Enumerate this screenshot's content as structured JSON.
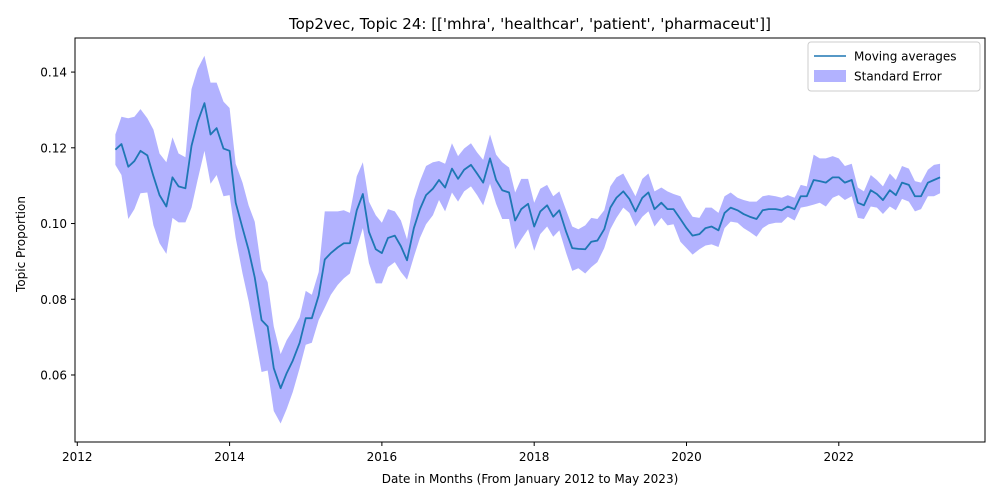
{
  "chart_data": {
    "type": "line",
    "title": "Top2vec, Topic 24: [['mhra', 'healthcar', 'patient', 'pharmaceut']]",
    "xlabel": "Date in Months (From January 2012 to May 2023)",
    "ylabel": "Topic Proportion",
    "xlim": [
      2011.97,
      2023.92
    ],
    "ylim": [
      0.0423,
      0.149
    ],
    "x_ticks": [
      2012,
      2014,
      2016,
      2018,
      2020,
      2022
    ],
    "x_tick_labels": [
      "2012",
      "2014",
      "2016",
      "2018",
      "2020",
      "2022"
    ],
    "y_ticks": [
      0.06,
      0.08,
      0.1,
      0.12,
      0.14
    ],
    "y_tick_labels": [
      "0.06",
      "0.08",
      "0.10",
      "0.12",
      "0.14"
    ],
    "legend": {
      "position": "top-right",
      "entries": [
        {
          "label": "Moving averages",
          "kind": "line"
        },
        {
          "label": "Standard Error",
          "kind": "patch"
        }
      ]
    },
    "colors": {
      "line": "#1f77b4",
      "band": "#0000ff",
      "band_opacity": 0.3
    },
    "x": [
      2012.5,
      2012.58,
      2012.67,
      2012.75,
      2012.83,
      2012.92,
      2013.0,
      2013.08,
      2013.17,
      2013.25,
      2013.33,
      2013.42,
      2013.5,
      2013.58,
      2013.67,
      2013.75,
      2013.83,
      2013.92,
      2014.0,
      2014.08,
      2014.17,
      2014.25,
      2014.33,
      2014.42,
      2014.5,
      2014.58,
      2014.67,
      2014.75,
      2014.83,
      2014.92,
      2015.0,
      2015.08,
      2015.17,
      2015.25,
      2015.33,
      2015.42,
      2015.5,
      2015.58,
      2015.67,
      2015.75,
      2015.83,
      2015.92,
      2016.0,
      2016.08,
      2016.17,
      2016.25,
      2016.33,
      2016.42,
      2016.5,
      2016.58,
      2016.67,
      2016.75,
      2016.83,
      2016.92,
      2017.0,
      2017.08,
      2017.17,
      2017.25,
      2017.33,
      2017.42,
      2017.5,
      2017.58,
      2017.67,
      2017.75,
      2017.83,
      2017.92,
      2018.0,
      2018.08,
      2018.17,
      2018.25,
      2018.33,
      2018.42,
      2018.5,
      2018.58,
      2018.67,
      2018.75,
      2018.83,
      2018.92,
      2019.0,
      2019.08,
      2019.17,
      2019.25,
      2019.33,
      2019.42,
      2019.5,
      2019.58,
      2019.67,
      2019.75,
      2019.83,
      2019.92,
      2020.0,
      2020.08,
      2020.17,
      2020.25,
      2020.33,
      2020.42,
      2020.5,
      2020.58,
      2020.67,
      2020.75,
      2020.83,
      2020.92,
      2021.0,
      2021.08,
      2021.17,
      2021.25,
      2021.33,
      2021.42,
      2021.5,
      2021.58,
      2021.67,
      2021.75,
      2021.83,
      2021.92,
      2022.0,
      2022.08,
      2022.17,
      2022.25,
      2022.33,
      2022.42,
      2022.5,
      2022.58,
      2022.67,
      2022.75,
      2022.83,
      2022.92,
      2023.0,
      2023.08,
      2023.17,
      2023.25,
      2023.33
    ],
    "values": [
      0.1195,
      0.121,
      0.115,
      0.1165,
      0.1192,
      0.118,
      0.1125,
      0.1075,
      0.1045,
      0.1122,
      0.1098,
      0.1093,
      0.1205,
      0.1268,
      0.1318,
      0.1235,
      0.1252,
      0.1198,
      0.1192,
      0.1055,
      0.0988,
      0.093,
      0.0858,
      0.0745,
      0.0728,
      0.0618,
      0.0565,
      0.0605,
      0.0638,
      0.0685,
      0.075,
      0.075,
      0.081,
      0.0905,
      0.0922,
      0.0937,
      0.0948,
      0.0948,
      0.1035,
      0.1078,
      0.0978,
      0.0932,
      0.0922,
      0.0962,
      0.0968,
      0.094,
      0.0903,
      0.0988,
      0.1038,
      0.1075,
      0.1092,
      0.1115,
      0.1095,
      0.1145,
      0.1118,
      0.1142,
      0.1155,
      0.1132,
      0.1108,
      0.1172,
      0.1115,
      0.1088,
      0.1082,
      0.1008,
      0.1038,
      0.1052,
      0.0992,
      0.1032,
      0.1048,
      0.1018,
      0.1035,
      0.0978,
      0.0935,
      0.0933,
      0.0932,
      0.0952,
      0.0955,
      0.0985,
      0.1042,
      0.1068,
      0.1085,
      0.1065,
      0.1032,
      0.1068,
      0.1082,
      0.1038,
      0.1055,
      0.1038,
      0.1038,
      0.1012,
      0.0988,
      0.0968,
      0.0972,
      0.0988,
      0.0992,
      0.0982,
      0.1028,
      0.1042,
      0.1035,
      0.1025,
      0.1018,
      0.1012,
      0.1035,
      0.1038,
      0.1038,
      0.1035,
      0.1045,
      0.1038,
      0.1072,
      0.1072,
      0.1115,
      0.1112,
      0.1108,
      0.1122,
      0.1122,
      0.1108,
      0.1115,
      0.1055,
      0.1048,
      0.1088,
      0.1078,
      0.1062,
      0.1088,
      0.1075,
      0.1108,
      0.1102,
      0.1072,
      0.1072,
      0.1108,
      0.1115,
      0.1122
    ],
    "lower": [
      0.1155,
      0.1128,
      0.1012,
      0.1038,
      0.108,
      0.1082,
      0.0995,
      0.0948,
      0.092,
      0.1015,
      0.1003,
      0.1003,
      0.1042,
      0.1115,
      0.1192,
      0.1105,
      0.1128,
      0.1072,
      0.1075,
      0.0962,
      0.0868,
      0.0795,
      0.0708,
      0.0608,
      0.0612,
      0.0505,
      0.0472,
      0.051,
      0.0555,
      0.0618,
      0.068,
      0.0685,
      0.0745,
      0.0778,
      0.0812,
      0.0838,
      0.0855,
      0.0868,
      0.0935,
      0.0988,
      0.0895,
      0.0842,
      0.0842,
      0.0885,
      0.0898,
      0.0872,
      0.0852,
      0.0912,
      0.0962,
      0.0998,
      0.1022,
      0.1062,
      0.1032,
      0.1082,
      0.1058,
      0.1085,
      0.1098,
      0.1075,
      0.1048,
      0.1105,
      0.1052,
      0.1012,
      0.1012,
      0.0932,
      0.0958,
      0.0985,
      0.0928,
      0.0972,
      0.0992,
      0.0965,
      0.0982,
      0.0922,
      0.0875,
      0.0882,
      0.0868,
      0.0885,
      0.0898,
      0.0935,
      0.0985,
      0.1015,
      0.1042,
      0.1028,
      0.0992,
      0.1018,
      0.1032,
      0.0992,
      0.1015,
      0.0995,
      0.0998,
      0.0952,
      0.0935,
      0.0918,
      0.0932,
      0.0942,
      0.0945,
      0.0938,
      0.0988,
      0.1005,
      0.1002,
      0.0988,
      0.0978,
      0.0965,
      0.0988,
      0.0998,
      0.1002,
      0.1002,
      0.1018,
      0.1008,
      0.1042,
      0.1045,
      0.105,
      0.1055,
      0.1045,
      0.1068,
      0.1075,
      0.1062,
      0.1072,
      0.1015,
      0.1012,
      0.1045,
      0.1042,
      0.1025,
      0.1045,
      0.1035,
      0.1065,
      0.1058,
      0.1032,
      0.1038,
      0.1072,
      0.1072,
      0.108
    ],
    "upper": [
      0.1235,
      0.1282,
      0.1278,
      0.1282,
      0.1302,
      0.1278,
      0.1248,
      0.1185,
      0.1162,
      0.1228,
      0.1185,
      0.1175,
      0.1355,
      0.1408,
      0.1443,
      0.1372,
      0.1372,
      0.1322,
      0.1305,
      0.1158,
      0.1108,
      0.1048,
      0.1005,
      0.0878,
      0.0845,
      0.0728,
      0.0655,
      0.0692,
      0.0718,
      0.0752,
      0.0822,
      0.0812,
      0.0872,
      0.1032,
      0.1032,
      0.1032,
      0.1035,
      0.1028,
      0.1125,
      0.1162,
      0.1058,
      0.1022,
      0.1002,
      0.1038,
      0.1032,
      0.1008,
      0.0958,
      0.1062,
      0.1112,
      0.1152,
      0.1162,
      0.1165,
      0.1158,
      0.1212,
      0.1178,
      0.1198,
      0.1212,
      0.1188,
      0.1168,
      0.1235,
      0.1182,
      0.1162,
      0.1148,
      0.1082,
      0.1118,
      0.1118,
      0.1055,
      0.1092,
      0.1102,
      0.1072,
      0.1085,
      0.1035,
      0.0992,
      0.0985,
      0.0995,
      0.1015,
      0.1012,
      0.1035,
      0.1098,
      0.1122,
      0.1132,
      0.1102,
      0.1072,
      0.1118,
      0.1132,
      0.1085,
      0.1095,
      0.1085,
      0.1078,
      0.1072,
      0.1042,
      0.1018,
      0.1015,
      0.1042,
      0.1042,
      0.1028,
      0.1072,
      0.1082,
      0.1068,
      0.1062,
      0.1058,
      0.1058,
      0.1072,
      0.1075,
      0.1072,
      0.1068,
      0.1075,
      0.1068,
      0.1102,
      0.1098,
      0.1182,
      0.1172,
      0.1172,
      0.1178,
      0.1172,
      0.1152,
      0.1158,
      0.1095,
      0.1085,
      0.1128,
      0.1115,
      0.1098,
      0.1132,
      0.1115,
      0.1152,
      0.1145,
      0.1112,
      0.1108,
      0.1142,
      0.1155,
      0.1158
    ]
  }
}
